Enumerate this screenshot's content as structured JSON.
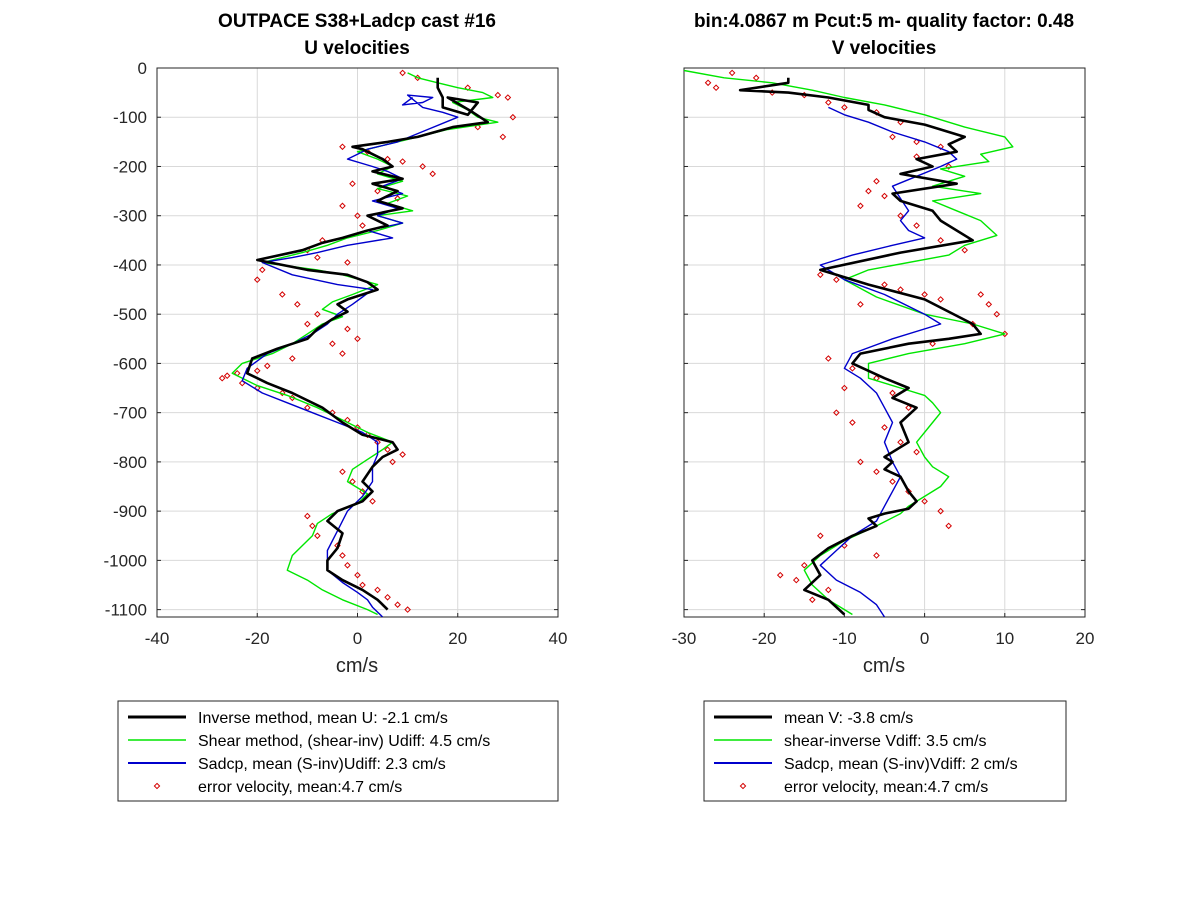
{
  "colors": {
    "inverse": "#000000",
    "shear": "#00e600",
    "sadcp": "#0000cc",
    "error": "#d40000",
    "grid": "#d9d9d9",
    "axis": "#262626"
  },
  "chart_data": [
    {
      "type": "line",
      "title_line1": "OUTPACE S38+Ladcp cast #16",
      "title_line2": "U velocities",
      "xlabel": "cm/s",
      "ylabel": "",
      "xlim": [
        -40,
        40
      ],
      "ylim": [
        -1115,
        0
      ],
      "xticks": [
        "-40",
        "-20",
        "0",
        "20",
        "40"
      ],
      "yticks": [
        "0",
        "-100",
        "-200",
        "-300",
        "-400",
        "-500",
        "-600",
        "-700",
        "-800",
        "-900",
        "-1000",
        "-1100"
      ],
      "grid": true,
      "legend_position": "below",
      "series": [
        {
          "name": "Inverse method, mean U:  -2.1 cm/s",
          "style": "line",
          "color_key": "inverse",
          "x": [
            16,
            16,
            17,
            17,
            22,
            24,
            18,
            23,
            26,
            19,
            12,
            6,
            -1,
            1,
            5,
            7,
            3,
            9,
            3,
            8,
            4,
            9,
            2,
            6,
            2,
            -3,
            -7,
            -11,
            -20,
            -10,
            -2,
            2,
            4,
            -2,
            -4,
            -2,
            -5,
            -8,
            -10,
            -16,
            -21,
            -22,
            -18,
            -13,
            -7,
            -3,
            1,
            7,
            8,
            5,
            3,
            1,
            3,
            1,
            -4,
            -6,
            -3,
            -4,
            -6,
            -6,
            -3,
            1,
            4,
            6
          ],
          "y": [
            -20,
            -40,
            -60,
            -80,
            -95,
            -70,
            -60,
            -90,
            -110,
            -120,
            -140,
            -150,
            -160,
            -165,
            -185,
            -200,
            -210,
            -225,
            -235,
            -250,
            -270,
            -285,
            -300,
            -320,
            -330,
            -345,
            -355,
            -370,
            -390,
            -410,
            -420,
            -435,
            -450,
            -470,
            -480,
            -495,
            -510,
            -530,
            -550,
            -570,
            -590,
            -620,
            -640,
            -660,
            -690,
            -720,
            -745,
            -760,
            -775,
            -790,
            -810,
            -840,
            -860,
            -880,
            -900,
            -920,
            -945,
            -975,
            -1000,
            -1020,
            -1040,
            -1060,
            -1080,
            -1100
          ]
        },
        {
          "name": "Shear method, (shear-inv)  Udiff:  4.5 cm/s",
          "style": "line",
          "color_key": "shear",
          "x": [
            10,
            12,
            16,
            20,
            25,
            27,
            19,
            22,
            24,
            28,
            18,
            10,
            4,
            0,
            4,
            7,
            4,
            9,
            4,
            10,
            6,
            11,
            4,
            9,
            4,
            -2,
            -6,
            -11,
            -19,
            -8,
            -3,
            4,
            -1,
            -5,
            -7,
            -3,
            -7,
            -10,
            -13,
            -17,
            -23,
            -25,
            -20,
            -14,
            -8,
            -3,
            2,
            7,
            5,
            2,
            -1,
            -2,
            2,
            0,
            -5,
            -8,
            -9,
            -13,
            -14,
            -10,
            -7,
            -3,
            2,
            4
          ],
          "y": [
            -10,
            -20,
            -30,
            -40,
            -50,
            -60,
            -70,
            -85,
            -100,
            -110,
            -125,
            -145,
            -160,
            -170,
            -185,
            -200,
            -215,
            -230,
            -245,
            -260,
            -275,
            -290,
            -300,
            -315,
            -330,
            -345,
            -360,
            -375,
            -395,
            -410,
            -420,
            -440,
            -460,
            -475,
            -490,
            -505,
            -520,
            -540,
            -560,
            -580,
            -600,
            -620,
            -645,
            -665,
            -690,
            -715,
            -740,
            -760,
            -775,
            -795,
            -815,
            -840,
            -865,
            -885,
            -905,
            -925,
            -950,
            -990,
            -1020,
            -1040,
            -1060,
            -1080,
            -1100,
            -1110
          ]
        },
        {
          "name": "Sadcp, mean (S-inv)Udiff: 2.3 cm/s",
          "style": "line",
          "color_key": "sadcp",
          "x": [
            11,
            9,
            13,
            15,
            10,
            13,
            17,
            20,
            14,
            8,
            2,
            0,
            -2,
            3,
            6,
            9,
            5,
            9,
            3,
            8,
            4,
            9,
            2,
            7,
            -2,
            -8,
            -13,
            -19,
            -13,
            -4,
            3,
            1,
            -1,
            -4,
            -6,
            -9,
            -13,
            -18,
            -22,
            -23,
            -19,
            -14,
            -9,
            -4,
            1,
            4,
            4,
            3,
            3,
            1,
            -2,
            -4,
            -6,
            -6,
            -3,
            0,
            2,
            3,
            4,
            5
          ],
          "y": [
            -60,
            -75,
            -70,
            -60,
            -55,
            -80,
            -90,
            -100,
            -125,
            -150,
            -165,
            -175,
            -185,
            -200,
            -210,
            -225,
            -240,
            -255,
            -270,
            -285,
            -300,
            -315,
            -330,
            -345,
            -360,
            -375,
            -385,
            -395,
            -420,
            -440,
            -450,
            -465,
            -480,
            -500,
            -520,
            -540,
            -560,
            -580,
            -610,
            -635,
            -660,
            -680,
            -700,
            -720,
            -740,
            -760,
            -785,
            -810,
            -840,
            -870,
            -900,
            -940,
            -980,
            -1020,
            -1045,
            -1065,
            -1080,
            -1095,
            -1105,
            -1115
          ]
        },
        {
          "name": "error velocity, mean:4.7 cm/s",
          "style": "marker",
          "color_key": "error",
          "x": [
            9,
            12,
            22,
            28,
            30,
            31,
            24,
            29,
            -3,
            2,
            6,
            9,
            13,
            15,
            -1,
            4,
            8,
            -3,
            0,
            1,
            -7,
            -10,
            -8,
            -2,
            -19,
            -20,
            -15,
            -12,
            -8,
            -10,
            -2,
            0,
            -5,
            -3,
            -13,
            -18,
            -20,
            -24,
            -26,
            -27,
            -23,
            -20,
            -15,
            -13,
            -10,
            -5,
            -2,
            0,
            2,
            4,
            6,
            9,
            7,
            -3,
            -1,
            1,
            3,
            -10,
            -9,
            -8,
            -4,
            -3,
            -2,
            0,
            1,
            4,
            6,
            8,
            10
          ],
          "y": [
            -10,
            -20,
            -40,
            -55,
            -60,
            -100,
            -120,
            -140,
            -160,
            -170,
            -185,
            -190,
            -200,
            -215,
            -235,
            -250,
            -265,
            -280,
            -300,
            -320,
            -350,
            -370,
            -385,
            -395,
            -410,
            -430,
            -460,
            -480,
            -500,
            -520,
            -530,
            -550,
            -560,
            -580,
            -590,
            -605,
            -615,
            -620,
            -625,
            -630,
            -640,
            -650,
            -660,
            -670,
            -690,
            -700,
            -715,
            -730,
            -745,
            -760,
            -775,
            -785,
            -800,
            -820,
            -840,
            -860,
            -880,
            -910,
            -930,
            -950,
            -970,
            -990,
            -1010,
            -1030,
            -1050,
            -1060,
            -1075,
            -1090,
            -1100
          ]
        }
      ]
    },
    {
      "type": "line",
      "title_line1": "bin:4.0867 m  Pcut:5 m- quality factor:  0.48",
      "title_line2": "V velocities",
      "xlabel": "cm/s",
      "ylabel": "",
      "xlim": [
        -30,
        20
      ],
      "ylim": [
        -1115,
        0
      ],
      "xticks": [
        "-30",
        "-20",
        "-10",
        "0",
        "10",
        "20"
      ],
      "yticks": [],
      "grid": true,
      "legend_position": "below",
      "series": [
        {
          "name": "mean V:  -3.8 cm/s",
          "style": "line",
          "color_key": "inverse",
          "x": [
            -17,
            -17,
            -23,
            -17,
            -12,
            -7,
            -7,
            -5,
            0,
            5,
            3,
            4,
            -1,
            1,
            -3,
            4,
            -4,
            -3,
            1,
            2,
            6,
            -3,
            -13,
            -11,
            -7,
            0,
            6,
            7,
            3,
            -2,
            -8,
            -9,
            -5,
            -2,
            -4,
            -1,
            -3,
            -2,
            -5,
            -4,
            -5,
            -3,
            -2,
            -1,
            -2,
            -5,
            -7,
            -6,
            -9,
            -12,
            -14,
            -13,
            -15,
            -12,
            -10
          ],
          "y": [
            -20,
            -30,
            -45,
            -50,
            -60,
            -75,
            -85,
            -100,
            -115,
            -140,
            -155,
            -170,
            -185,
            -200,
            -215,
            -235,
            -255,
            -270,
            -290,
            -310,
            -350,
            -375,
            -410,
            -420,
            -440,
            -470,
            -520,
            -540,
            -550,
            -560,
            -580,
            -600,
            -630,
            -650,
            -670,
            -690,
            -720,
            -760,
            -790,
            -800,
            -815,
            -830,
            -860,
            -880,
            -895,
            -905,
            -915,
            -930,
            -950,
            -975,
            -1000,
            -1030,
            -1060,
            -1080,
            -1110
          ]
        },
        {
          "name": "shear-inverse Vdiff:  3.5 cm/s",
          "style": "line",
          "color_key": "shear",
          "x": [
            -30,
            -25,
            -19,
            -14,
            -10,
            -5,
            0,
            5,
            10,
            11,
            7,
            8,
            2,
            5,
            1,
            7,
            1,
            4,
            7,
            9,
            5,
            3,
            -7,
            -10,
            -6,
            0,
            6,
            10,
            5,
            -2,
            -7,
            -7,
            -3,
            0,
            1,
            2,
            1,
            -1,
            0,
            1,
            3,
            2,
            0,
            -2,
            -3,
            -6,
            -10,
            -13,
            -15,
            -14,
            -12,
            -9
          ],
          "y": [
            -5,
            -20,
            -30,
            -45,
            -60,
            -75,
            -95,
            -120,
            -140,
            -160,
            -175,
            -190,
            -205,
            -220,
            -240,
            -255,
            -270,
            -290,
            -310,
            -340,
            -360,
            -380,
            -410,
            -430,
            -465,
            -500,
            -520,
            -540,
            -560,
            -580,
            -600,
            -630,
            -650,
            -665,
            -680,
            -700,
            -720,
            -760,
            -790,
            -810,
            -830,
            -850,
            -870,
            -890,
            -905,
            -930,
            -960,
            -990,
            -1020,
            -1050,
            -1080,
            -1110
          ]
        },
        {
          "name": "Sadcp, mean (S-inv)Vdiff: 2 cm/s",
          "style": "line",
          "color_key": "sadcp",
          "x": [
            -12,
            -10,
            -7,
            -4,
            0,
            3,
            4,
            2,
            -1,
            -4,
            -3,
            -2,
            -3,
            -2,
            0,
            -4,
            -9,
            -13,
            -10,
            -5,
            0,
            2,
            -4,
            -9,
            -10,
            -8,
            -6,
            -5,
            -4,
            -5,
            -4,
            -3,
            -4,
            -5,
            -6,
            -9,
            -11,
            -13,
            -11,
            -8,
            -6,
            -5
          ],
          "y": [
            -80,
            -95,
            -110,
            -130,
            -150,
            -170,
            -185,
            -200,
            -220,
            -240,
            -265,
            -290,
            -310,
            -330,
            -345,
            -360,
            -380,
            -400,
            -430,
            -460,
            -500,
            -520,
            -550,
            -580,
            -610,
            -630,
            -660,
            -690,
            -720,
            -760,
            -800,
            -830,
            -860,
            -890,
            -920,
            -950,
            -980,
            -1010,
            -1040,
            -1065,
            -1090,
            -1115
          ]
        },
        {
          "name": "error velocity, mean:4.7 cm/s",
          "style": "marker",
          "color_key": "error",
          "x": [
            -24,
            -21,
            -27,
            -26,
            -19,
            -15,
            -12,
            -10,
            -6,
            -3,
            -4,
            -1,
            2,
            -1,
            3,
            -6,
            -7,
            -5,
            -8,
            -3,
            -1,
            2,
            5,
            -13,
            -11,
            -5,
            -3,
            0,
            2,
            -8,
            -12,
            -9,
            -6,
            -4,
            -2,
            7,
            8,
            9,
            6,
            10,
            1,
            -10,
            -11,
            -9,
            -5,
            -3,
            -1,
            -8,
            -6,
            -4,
            -2,
            0,
            2,
            3,
            -13,
            -10,
            -6,
            -15,
            -18,
            -16,
            -12,
            -14
          ],
          "y": [
            -10,
            -20,
            -30,
            -40,
            -50,
            -55,
            -70,
            -80,
            -90,
            -110,
            -140,
            -150,
            -160,
            -180,
            -200,
            -230,
            -250,
            -260,
            -280,
            -300,
            -320,
            -350,
            -370,
            -420,
            -430,
            -440,
            -450,
            -460,
            -470,
            -480,
            -590,
            -610,
            -630,
            -660,
            -690,
            -460,
            -480,
            -500,
            -520,
            -540,
            -560,
            -650,
            -700,
            -720,
            -730,
            -760,
            -780,
            -800,
            -820,
            -840,
            -860,
            -880,
            -900,
            -930,
            -950,
            -970,
            -990,
            -1010,
            -1030,
            -1040,
            -1060,
            -1080
          ]
        }
      ]
    }
  ]
}
